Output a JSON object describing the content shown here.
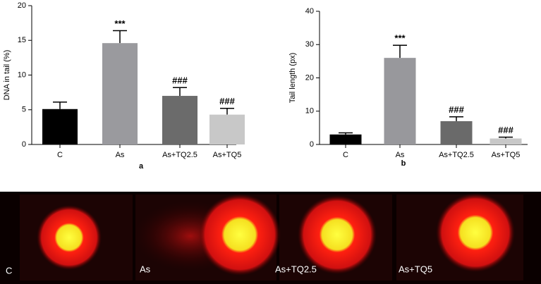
{
  "chart_data": [
    {
      "type": "bar",
      "label": "a",
      "ylabel": "DNA in tail (%)",
      "categories": [
        "C",
        "As",
        "As+TQ2.5",
        "As+TQ5"
      ],
      "values": [
        5.1,
        14.6,
        7.0,
        4.3
      ],
      "errors": [
        1.0,
        1.8,
        1.2,
        0.9
      ],
      "annotations": [
        null,
        "***",
        "###",
        "###"
      ],
      "colors": [
        "#000000",
        "#9a9a9e",
        "#6b6b6b",
        "#c8c8c8"
      ],
      "ylim": [
        0,
        20
      ],
      "yticks": [
        0,
        5,
        10,
        15,
        20
      ]
    },
    {
      "type": "bar",
      "label": "b",
      "ylabel": "Tail length (px)",
      "categories": [
        "C",
        "As",
        "As+TQ2.5",
        "As+TQ5"
      ],
      "values": [
        3.0,
        26.0,
        7.0,
        1.8
      ],
      "errors": [
        0.5,
        3.8,
        1.3,
        0.4
      ],
      "annotations": [
        null,
        "***",
        "###",
        "###"
      ],
      "colors": [
        "#000000",
        "#98989c",
        "#6a6a6a",
        "#c8c8c8"
      ],
      "ylim": [
        0,
        40
      ],
      "yticks": [
        0,
        10,
        20,
        30,
        40
      ]
    }
  ],
  "comet_panel": {
    "label": "C",
    "captions": [
      "As",
      "As+TQ2.5",
      "As+TQ5"
    ]
  }
}
